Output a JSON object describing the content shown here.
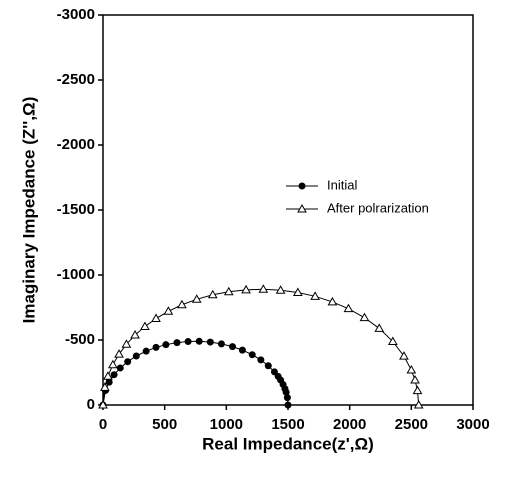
{
  "chart_data": {
    "type": "line",
    "x_label": "Real Impedance(z',Ω)",
    "y_label": "Imaginary Impedance (Z'',Ω)",
    "xlim": [
      0,
      3000
    ],
    "xticks": [
      0,
      500,
      1000,
      1500,
      2000,
      2500,
      3000
    ],
    "ylim": [
      0,
      -3000
    ],
    "yticks": [
      0,
      -500,
      -1000,
      -1500,
      -2000,
      -2500,
      -3000
    ],
    "series": [
      {
        "name": "Initial",
        "color": "#000000",
        "marker": "filled-circle",
        "x": [
          0,
          20,
          50,
          90,
          140,
          200,
          270,
          350,
          430,
          510,
          600,
          690,
          780,
          870,
          960,
          1050,
          1130,
          1210,
          1280,
          1340,
          1390,
          1420,
          1440,
          1460,
          1475,
          1485,
          1495,
          1500
        ],
        "values": [
          0,
          -112,
          -176,
          -233,
          -285,
          -333,
          -377,
          -414,
          -443,
          -464,
          -480,
          -488,
          -490,
          -484,
          -470,
          -449,
          -422,
          -387,
          -347,
          -302,
          -255,
          -220,
          -192,
          -158,
          -125,
          -98,
          -57,
          0
        ]
      },
      {
        "name": "After polrarization",
        "color": "#000000",
        "marker": "open-triangle",
        "x": [
          0,
          15,
          40,
          80,
          130,
          190,
          260,
          340,
          430,
          530,
          640,
          760,
          890,
          1020,
          1160,
          1300,
          1440,
          1580,
          1720,
          1860,
          1990,
          2120,
          2240,
          2350,
          2440,
          2500,
          2530,
          2550,
          2560
        ],
        "values": [
          0,
          -136,
          -221,
          -310,
          -391,
          -467,
          -538,
          -604,
          -665,
          -721,
          -771,
          -813,
          -848,
          -871,
          -886,
          -890,
          -883,
          -865,
          -836,
          -793,
          -741,
          -672,
          -589,
          -488,
          -376,
          -269,
          -192,
          -111,
          0
        ]
      }
    ]
  }
}
